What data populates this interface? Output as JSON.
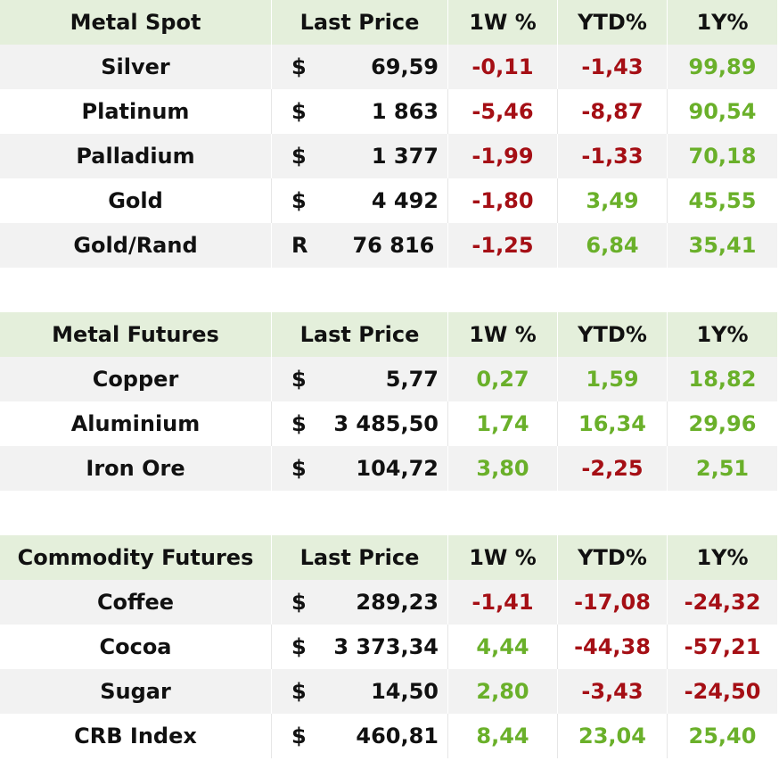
{
  "colors": {
    "header_bg": "#e4efdb",
    "negative": "#a50f15",
    "positive": "#6ab02a"
  },
  "sections": [
    {
      "headers": [
        "Metal Spot",
        "Last Price",
        "1W %",
        "YTD%",
        "1Y%"
      ],
      "rows": [
        {
          "name": "Silver",
          "cur": "$",
          "price": "69,59",
          "w1": "-0,11",
          "ytd": "-1,43",
          "y1": "99,89",
          "w1s": "neg",
          "ytds": "neg",
          "y1s": "pos"
        },
        {
          "name": "Platinum",
          "cur": "$",
          "price": "1 863",
          "w1": "-5,46",
          "ytd": "-8,87",
          "y1": "90,54",
          "w1s": "neg",
          "ytds": "neg",
          "y1s": "pos"
        },
        {
          "name": "Palladium",
          "cur": "$",
          "price": "1 377",
          "w1": "-1,99",
          "ytd": "-1,33",
          "y1": "70,18",
          "w1s": "neg",
          "ytds": "neg",
          "y1s": "pos"
        },
        {
          "name": "Gold",
          "cur": "$",
          "price": "4 492",
          "w1": "-1,80",
          "ytd": "3,49",
          "y1": "45,55",
          "w1s": "neg",
          "ytds": "pos",
          "y1s": "pos"
        },
        {
          "name": "Gold/Rand",
          "cur": "R",
          "price": "76 816",
          "w1": "-1,25",
          "ytd": "6,84",
          "y1": "35,41",
          "w1s": "neg",
          "ytds": "pos",
          "y1s": "pos"
        }
      ]
    },
    {
      "headers": [
        "Metal Futures",
        "Last Price",
        "1W %",
        "YTD%",
        "1Y%"
      ],
      "rows": [
        {
          "name": "Copper",
          "cur": "$",
          "price": "5,77",
          "w1": "0,27",
          "ytd": "1,59",
          "y1": "18,82",
          "w1s": "pos",
          "ytds": "pos",
          "y1s": "pos"
        },
        {
          "name": "Aluminium",
          "cur": "$",
          "price": "3 485,50",
          "w1": "1,74",
          "ytd": "16,34",
          "y1": "29,96",
          "w1s": "pos",
          "ytds": "pos",
          "y1s": "pos"
        },
        {
          "name": "Iron Ore",
          "cur": "$",
          "price": "104,72",
          "w1": "3,80",
          "ytd": "-2,25",
          "y1": "2,51",
          "w1s": "pos",
          "ytds": "neg",
          "y1s": "pos"
        }
      ]
    },
    {
      "headers": [
        "Commodity Futures",
        "Last Price",
        "1W %",
        "YTD%",
        "1Y%"
      ],
      "rows": [
        {
          "name": "Coffee",
          "cur": "$",
          "price": "289,23",
          "w1": "-1,41",
          "ytd": "-17,08",
          "y1": "-24,32",
          "w1s": "neg",
          "ytds": "neg",
          "y1s": "neg"
        },
        {
          "name": "Cocoa",
          "cur": "$",
          "price": "3 373,34",
          "w1": "4,44",
          "ytd": "-44,38",
          "y1": "-57,21",
          "w1s": "pos",
          "ytds": "neg",
          "y1s": "neg"
        },
        {
          "name": "Sugar",
          "cur": "$",
          "price": "14,50",
          "w1": "2,80",
          "ytd": "-3,43",
          "y1": "-24,50",
          "w1s": "pos",
          "ytds": "neg",
          "y1s": "neg"
        },
        {
          "name": "CRB Index",
          "cur": "$",
          "price": "460,81",
          "w1": "8,44",
          "ytd": "23,04",
          "y1": "25,40",
          "w1s": "pos",
          "ytds": "pos",
          "y1s": "pos"
        }
      ]
    }
  ]
}
